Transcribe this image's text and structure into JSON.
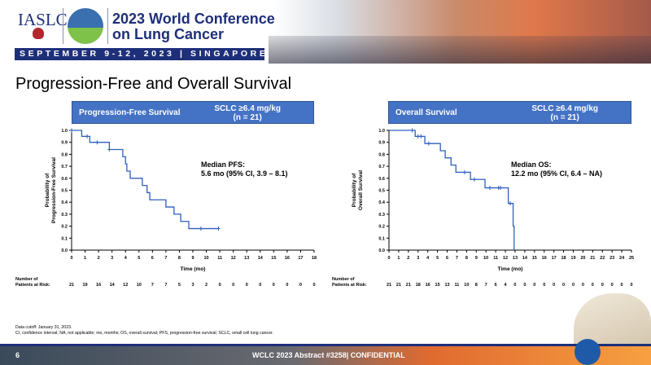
{
  "header": {
    "org": "IASLC",
    "conference_title_line1": "2023 World Conference",
    "conference_title_line2": "on Lung Cancer",
    "date_location": "SEPTEMBER 9-12, 2023 | SINGAPORE"
  },
  "slide": {
    "title": "Progression-Free and Overall Survival",
    "page": "6",
    "footer": "WCLC 2023 Abstract #3258| CONFIDENTIAL"
  },
  "footnotes": [
    "Data cutoff: January 31, 2023.",
    "CI, confidence interval; NA, not applicable; mo, months; OS, overall survival; PFS, progression-free survival; SCLC, small cell lung cancer."
  ],
  "colors": {
    "curve": "#2f5fbf",
    "header_box": "#4472c4",
    "navy": "#1e2f7a"
  },
  "chart_data": [
    {
      "type": "line",
      "subtype": "kaplan-meier",
      "box_left": "Progression-Free Survival",
      "box_right_line1": "SCLC ≥6.4 mg/kg",
      "box_right_line2": "(n = 21)",
      "ylabel_line1": "Probability of",
      "ylabel_line2": "Progression-Free Survival",
      "xlabel": "Time (mo)",
      "xlim": [
        0,
        18
      ],
      "ylim": [
        0,
        1
      ],
      "yticks": [
        "0.0",
        "0.1",
        "0.2",
        "0.3",
        "0.4",
        "0.5",
        "0.6",
        "0.7",
        "0.8",
        "0.9",
        "1.0"
      ],
      "xticks": [
        "0",
        "1",
        "2",
        "3",
        "4",
        "5",
        "6",
        "7",
        "8",
        "9",
        "10",
        "11",
        "12",
        "13",
        "14",
        "15",
        "16",
        "17",
        "18"
      ],
      "steps": [
        [
          0,
          1.0
        ],
        [
          0.75,
          0.95
        ],
        [
          1.35,
          0.9
        ],
        [
          2.8,
          0.84
        ],
        [
          3.8,
          0.78
        ],
        [
          4.0,
          0.72
        ],
        [
          4.1,
          0.66
        ],
        [
          4.35,
          0.6
        ],
        [
          5.25,
          0.54
        ],
        [
          5.6,
          0.48
        ],
        [
          5.8,
          0.42
        ],
        [
          7.0,
          0.36
        ],
        [
          7.6,
          0.3
        ],
        [
          8.1,
          0.24
        ],
        [
          8.7,
          0.18
        ]
      ],
      "end_time": 10.9,
      "censored": [
        0,
        1.15,
        1.9,
        2.8,
        9.6,
        10.9
      ],
      "annotation_line1": "Median PFS:",
      "annotation_line2": "5.6 mo (95% CI, 3.9 – 8.1)",
      "risk_label_line1": "Number of",
      "risk_label_line2": "Patients at Risk:",
      "at_risk": [
        "21",
        "19",
        "16",
        "14",
        "12",
        "10",
        "7",
        "7",
        "5",
        "3",
        "2",
        "0",
        "0",
        "0",
        "0",
        "0",
        "0",
        "0",
        "0"
      ]
    },
    {
      "type": "line",
      "subtype": "kaplan-meier",
      "box_left": "Overall Survival",
      "box_right_line1": "SCLC ≥6.4 mg/kg",
      "box_right_line2": "(n = 21)",
      "ylabel_line1": "Probability of",
      "ylabel_line2": "Overall Survival",
      "xlabel": "Time (mo)",
      "xlim": [
        0,
        25
      ],
      "ylim": [
        0,
        1
      ],
      "yticks": [
        "0.0",
        "0.1",
        "0.2",
        "0.3",
        "0.4",
        "0.5",
        "0.6",
        "0.7",
        "0.8",
        "0.9",
        "1.0"
      ],
      "xticks": [
        "0",
        "1",
        "2",
        "3",
        "4",
        "5",
        "6",
        "7",
        "8",
        "9",
        "10",
        "11",
        "12",
        "13",
        "14",
        "15",
        "16",
        "17",
        "18",
        "19",
        "20",
        "21",
        "22",
        "23",
        "24",
        "25"
      ],
      "steps": [
        [
          0,
          1.0
        ],
        [
          2.7,
          0.95
        ],
        [
          3.7,
          0.89
        ],
        [
          5.3,
          0.83
        ],
        [
          5.8,
          0.77
        ],
        [
          6.4,
          0.71
        ],
        [
          6.9,
          0.65
        ],
        [
          8.4,
          0.59
        ],
        [
          9.9,
          0.52
        ],
        [
          12.3,
          0.39
        ],
        [
          12.8,
          0.2
        ],
        [
          12.9,
          0.0
        ]
      ],
      "end_time": 12.9,
      "censored": [
        2.4,
        3.0,
        3.3,
        4.1,
        7.8,
        8.8,
        10.4,
        11.3,
        11.5,
        12.5
      ],
      "annotation_line1": "Median OS:",
      "annotation_line2": "12.2 mo (95% CI, 6.4 – NA)",
      "risk_label_line1": "Number of",
      "risk_label_line2": "Patients at Risk:",
      "at_risk": [
        "21",
        "21",
        "21",
        "18",
        "16",
        "15",
        "13",
        "11",
        "10",
        "8",
        "7",
        "6",
        "4",
        "0",
        "0",
        "0",
        "0",
        "0",
        "0",
        "0",
        "0",
        "0",
        "0",
        "0",
        "0",
        "0"
      ]
    }
  ]
}
